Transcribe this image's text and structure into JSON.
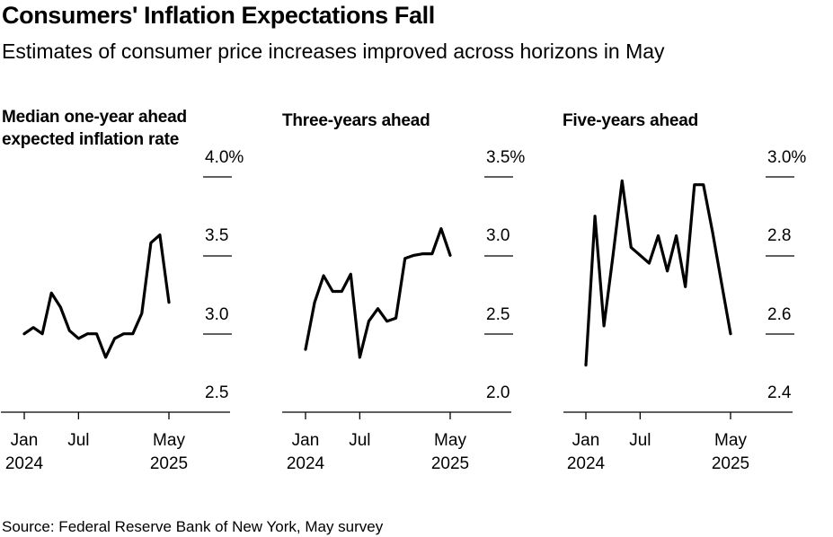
{
  "header": {
    "title": "Consumers' Inflation Expectations Fall",
    "subtitle": "Estimates of consumer price increases improved across horizons in May"
  },
  "footer": {
    "source": "Source: Federal Reserve Bank of New York, May survey"
  },
  "chart_data": [
    {
      "type": "line",
      "title": "Median one-year ahead expected inflation rate",
      "months": [
        "Jan 2024",
        "Feb 2024",
        "Mar 2024",
        "Apr 2024",
        "May 2024",
        "Jun 2024",
        "Jul 2024",
        "Aug 2024",
        "Sep 2024",
        "Oct 2024",
        "Nov 2024",
        "Dec 2024",
        "Jan 2025",
        "Feb 2025",
        "Mar 2025",
        "Apr 2025",
        "May 2025"
      ],
      "values": [
        3.0,
        3.04,
        3.0,
        3.26,
        3.17,
        3.02,
        2.97,
        3.0,
        3.0,
        2.85,
        2.97,
        3.0,
        3.0,
        3.13,
        3.58,
        3.63,
        3.2
      ],
      "ylim": [
        2.5,
        4.0
      ],
      "yticks": [
        "4.0%",
        "3.5",
        "3.0",
        "2.5"
      ],
      "xticks": [
        {
          "month": "Jan",
          "year": "2024"
        },
        {
          "month": "Jul",
          "year": ""
        },
        {
          "month": "May",
          "year": "2025"
        }
      ]
    },
    {
      "type": "line",
      "title": "Three-years ahead",
      "months": [
        "Jan 2024",
        "Feb 2024",
        "Mar 2024",
        "Apr 2024",
        "May 2024",
        "Jun 2024",
        "Jul 2024",
        "Aug 2024",
        "Sep 2024",
        "Oct 2024",
        "Nov 2024",
        "Dec 2024",
        "Jan 2025",
        "Feb 2025",
        "Mar 2025",
        "Apr 2025",
        "May 2025"
      ],
      "values": [
        2.4,
        2.7,
        2.87,
        2.77,
        2.77,
        2.88,
        2.35,
        2.58,
        2.66,
        2.58,
        2.6,
        2.98,
        3.0,
        3.01,
        3.01,
        3.17,
        3.0
      ],
      "ylim": [
        2.0,
        3.5
      ],
      "yticks": [
        "3.5%",
        "3.0",
        "2.5",
        "2.0"
      ],
      "xticks": [
        {
          "month": "Jan",
          "year": "2024"
        },
        {
          "month": "Jul",
          "year": ""
        },
        {
          "month": "May",
          "year": "2025"
        }
      ]
    },
    {
      "type": "line",
      "title": "Five-years ahead",
      "months": [
        "Jan 2024",
        "Feb 2024",
        "Mar 2024",
        "Apr 2024",
        "May 2024",
        "Jun 2024",
        "Jul 2024",
        "Aug 2024",
        "Sep 2024",
        "Oct 2024",
        "Nov 2024",
        "Dec 2024",
        "Jan 2025",
        "Feb 2025",
        "Mar 2025",
        "Apr 2025",
        "May 2025"
      ],
      "values": [
        2.52,
        2.9,
        2.62,
        2.8,
        2.99,
        2.82,
        2.8,
        2.78,
        2.85,
        2.76,
        2.85,
        2.72,
        2.98,
        2.98,
        2.86,
        2.73,
        2.6
      ],
      "ylim": [
        2.4,
        3.0
      ],
      "yticks": [
        "3.0%",
        "2.8",
        "2.6",
        "2.4"
      ],
      "xticks": [
        {
          "month": "Jan",
          "year": "2024"
        },
        {
          "month": "Jul",
          "year": ""
        },
        {
          "month": "May",
          "year": "2025"
        }
      ]
    }
  ]
}
